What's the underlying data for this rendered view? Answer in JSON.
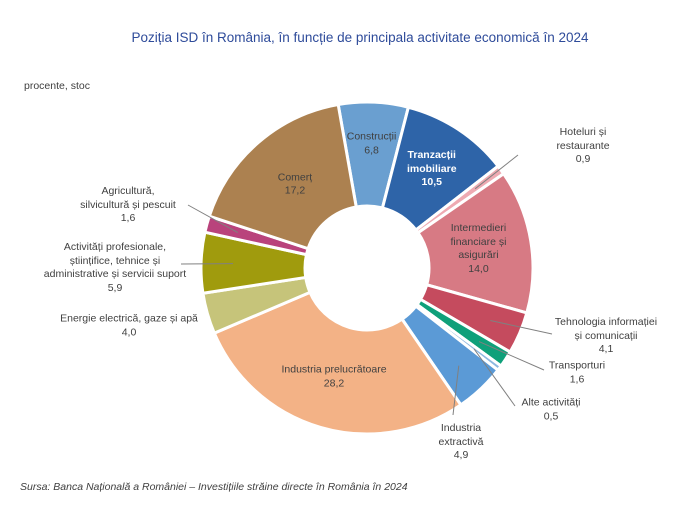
{
  "title": "Poziția ISD în România, în funcție de principala activitate economică în 2024",
  "unit_label": "procente, stoc",
  "source": "Sursa: Banca Națională a României – Investițiile străine directe în România în 2024",
  "chart_data": {
    "type": "pie",
    "variant": "donut",
    "title": "Poziția ISD în România, în funcție de principala activitate economică în 2024",
    "unit": "procente, stoc",
    "start_angle_deg": -10,
    "direction": "clockwise",
    "slices": [
      {
        "name": "Construcții",
        "label_lines": [
          "Construcții",
          "6,8"
        ],
        "value": 6.8,
        "color": "#6a9fd0"
      },
      {
        "name": "Tranzacții imobiliare",
        "label_lines": [
          "Tranzacții",
          "imobiliare",
          "10,5"
        ],
        "value": 10.5,
        "color": "#2e64a8"
      },
      {
        "name": "Hoteluri și restaurante",
        "label_lines": [
          "Hoteluri și",
          "restaurante",
          "0,9"
        ],
        "value": 0.9,
        "color": "#eeaab2"
      },
      {
        "name": "Intermedieri financiare și asigurări",
        "label_lines": [
          "Intermedieri",
          "financiare și",
          "asigurări",
          "14,0"
        ],
        "value": 14.0,
        "color": "#d77a84"
      },
      {
        "name": "Tehnologia informației și comunicații",
        "label_lines": [
          "Tehnologia informației",
          "și comunicații",
          "4,1"
        ],
        "value": 4.1,
        "color": "#c54b5e"
      },
      {
        "name": "Transporturi",
        "label_lines": [
          "Transporturi",
          "1,6"
        ],
        "value": 1.6,
        "color": "#0fa07a"
      },
      {
        "name": "Alte activități",
        "label_lines": [
          "Alte activități",
          "0,5"
        ],
        "value": 0.5,
        "color": "#8eb8e0"
      },
      {
        "name": "Industria extractivă",
        "label_lines": [
          "Industria",
          "extractivă",
          "4,9"
        ],
        "value": 4.9,
        "color": "#5b9ad6"
      },
      {
        "name": "Industria prelucrătoare",
        "label_lines": [
          "Industria prelucrătoare",
          "28,2"
        ],
        "value": 28.2,
        "color": "#f3b286"
      },
      {
        "name": "Energie electrică, gaze și apă",
        "label_lines": [
          "Energie electrică, gaze și apă",
          "4,0"
        ],
        "value": 4.0,
        "color": "#c6c47a"
      },
      {
        "name": "Activități profesionale, științifice, tehnice și administrative și servicii suport",
        "label_lines": [
          "Activități profesionale,",
          "științifice, tehnice și",
          "administrative și servicii suport",
          "5,9"
        ],
        "value": 5.9,
        "color": "#a09b0d"
      },
      {
        "name": "Agricultură, silvicultură și pescuit",
        "label_lines": [
          "Agricultură,",
          "silvicultură și pescuit",
          "1,6"
        ],
        "value": 1.6,
        "color": "#b9437c"
      },
      {
        "name": "Comerț",
        "label_lines": [
          "Comerț",
          "17,2"
        ],
        "value": 17.2,
        "color": "#ac8150"
      }
    ]
  }
}
